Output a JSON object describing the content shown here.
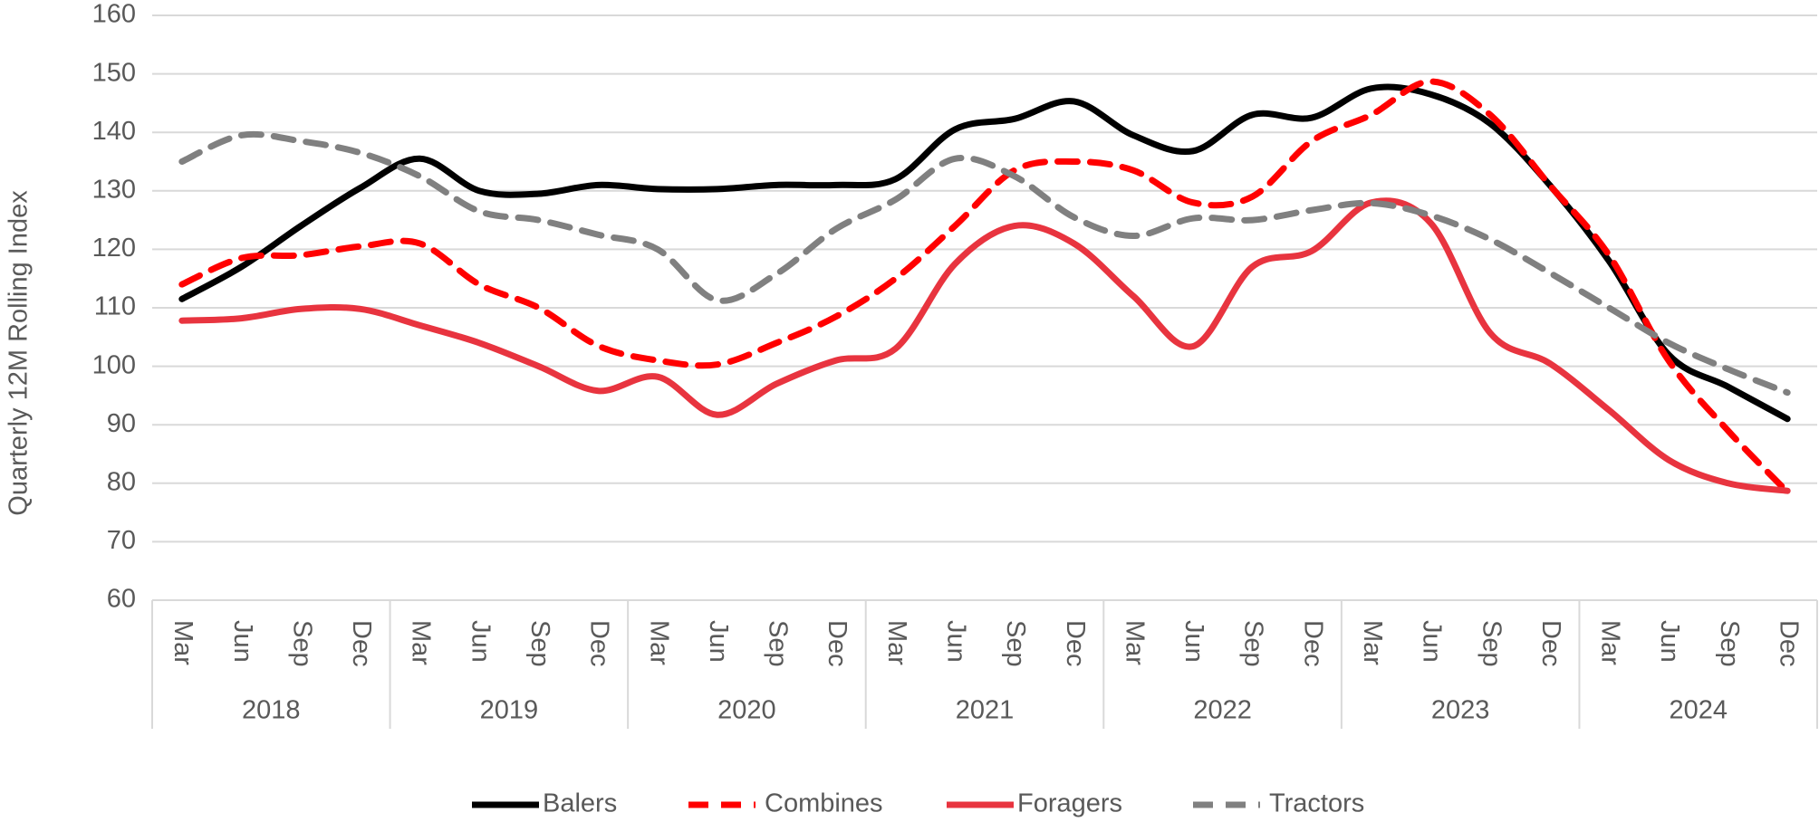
{
  "chart_data": {
    "type": "line",
    "y_label": "Quarterly 12M Rolling Index",
    "categories": [
      "Mar",
      "Jun",
      "Sep",
      "Dec",
      "Mar",
      "Jun",
      "Sep",
      "Dec",
      "Mar",
      "Jun",
      "Sep",
      "Dec",
      "Mar",
      "Jun",
      "Sep",
      "Dec",
      "Mar",
      "Jun",
      "Sep",
      "Dec",
      "Mar",
      "Jun",
      "Sep",
      "Dec",
      "Mar",
      "Jun",
      "Sep",
      "Dec"
    ],
    "year_groups": [
      "2018",
      "2019",
      "2020",
      "2021",
      "2022",
      "2023",
      "2024"
    ],
    "ylim": [
      60,
      160
    ],
    "yticks": [
      60,
      70,
      80,
      90,
      100,
      110,
      120,
      130,
      140,
      150,
      160
    ],
    "grid": true,
    "series": [
      {
        "name": "Balers",
        "color": "#000000",
        "dashed": false,
        "values": [
          111.5,
          117,
          124,
          130.5,
          135.5,
          130,
          129.5,
          131,
          130.3,
          130.3,
          131,
          131,
          132,
          140.5,
          142.3,
          145.3,
          139.5,
          136.8,
          143,
          142.5,
          147.5,
          146.5,
          141.5,
          131,
          118,
          102,
          96.5,
          91
        ]
      },
      {
        "name": "Combines",
        "color": "#ff0000",
        "dashed": true,
        "values": [
          114,
          118.5,
          119,
          120.5,
          121,
          114,
          110,
          103.5,
          101,
          100.3,
          104,
          108.5,
          115,
          124,
          133.5,
          135,
          133.5,
          128,
          129,
          138.5,
          143,
          148.7,
          143,
          131,
          119,
          101,
          89,
          78.5
        ]
      },
      {
        "name": "Foragers",
        "color": "#e8343f",
        "dashed": false,
        "values": [
          107.8,
          108.2,
          109.8,
          109.8,
          107,
          104,
          100,
          95.8,
          98.2,
          91.7,
          97,
          101,
          103,
          117.5,
          124,
          121,
          112,
          103.4,
          117,
          119.7,
          128,
          124.5,
          105.7,
          100.5,
          92.5,
          84,
          80,
          78.7
        ]
      },
      {
        "name": "Tractors",
        "color": "#808080",
        "dashed": true,
        "values": [
          135,
          139.5,
          138.5,
          136.5,
          132.5,
          126.5,
          125,
          122.5,
          120,
          111.3,
          115.8,
          123.5,
          128.5,
          135.5,
          132.5,
          125.5,
          122.3,
          125.3,
          125,
          126.7,
          127.9,
          125.8,
          121.7,
          116,
          110,
          104,
          99.5,
          95.5
        ]
      }
    ]
  }
}
